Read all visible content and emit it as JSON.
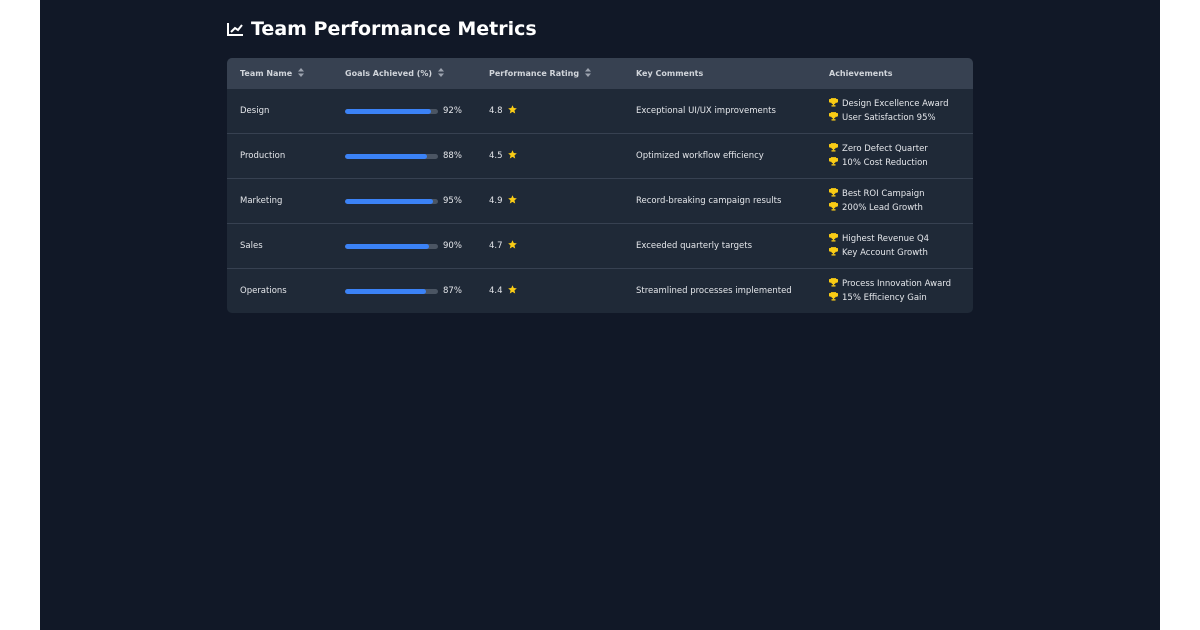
{
  "header": {
    "title": "Team Performance Metrics"
  },
  "table": {
    "columns": [
      {
        "label": "Team Name",
        "sortable": true
      },
      {
        "label": "Goals Achieved (%)",
        "sortable": true
      },
      {
        "label": "Performance Rating",
        "sortable": true
      },
      {
        "label": "Key Comments",
        "sortable": false
      },
      {
        "label": "Achievements",
        "sortable": false
      }
    ],
    "rows": [
      {
        "team": "Design",
        "goal": 92,
        "goal_label": "92%",
        "rating": 4.8,
        "comment": "Exceptional UI/UX improvements",
        "achievements": [
          "Design Excellence Award",
          "User Satisfaction 95%"
        ]
      },
      {
        "team": "Production",
        "goal": 88,
        "goal_label": "88%",
        "rating": 4.5,
        "comment": "Optimized workflow efficiency",
        "achievements": [
          "Zero Defect Quarter",
          "10% Cost Reduction"
        ]
      },
      {
        "team": "Marketing",
        "goal": 95,
        "goal_label": "95%",
        "rating": 4.9,
        "comment": "Record-breaking campaign results",
        "achievements": [
          "Best ROI Campaign",
          "200% Lead Growth"
        ]
      },
      {
        "team": "Sales",
        "goal": 90,
        "goal_label": "90%",
        "rating": 4.7,
        "comment": "Exceeded quarterly targets",
        "achievements": [
          "Highest Revenue Q4",
          "Key Account Growth"
        ]
      },
      {
        "team": "Operations",
        "goal": 87,
        "goal_label": "87%",
        "rating": 4.4,
        "comment": "Streamlined processes implemented",
        "achievements": [
          "Process Innovation Award",
          "15% Efficiency Gain"
        ]
      }
    ]
  }
}
